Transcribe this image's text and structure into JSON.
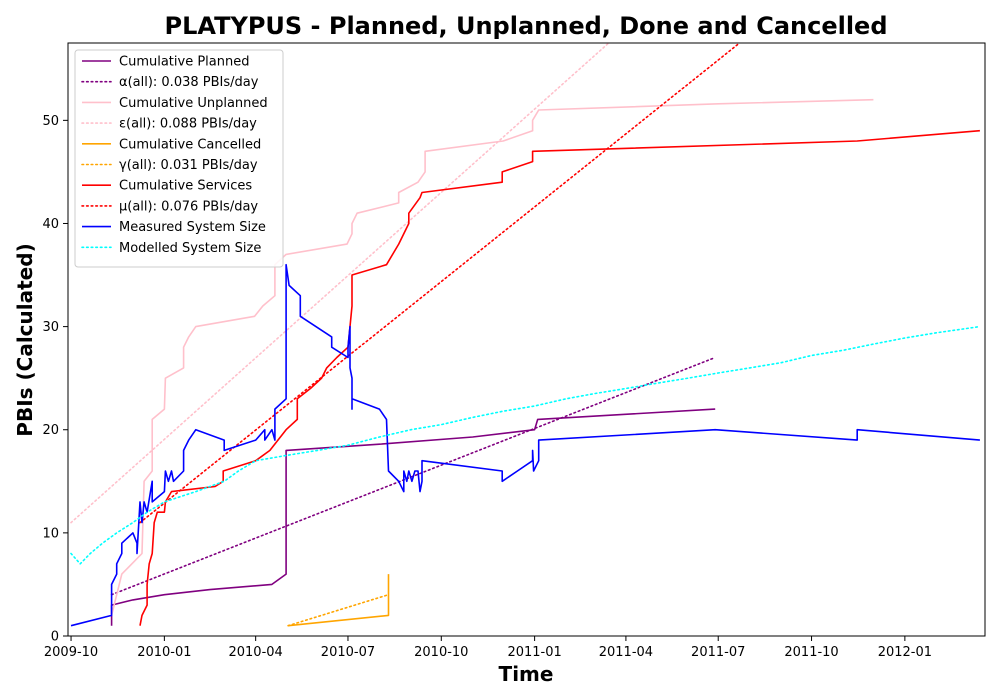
{
  "chart_data": {
    "type": "line",
    "title": "PLATYPUS - Planned, Unplanned, Done  and Cancelled",
    "xlabel": "Time",
    "ylabel": "PBIs (Calculated)",
    "xlim": [
      "2009-09-28",
      "2012-03-20"
    ],
    "ylim": [
      0,
      57.5
    ],
    "x_ticks": [
      "2009-10",
      "2010-01",
      "2010-04",
      "2010-07",
      "2010-10",
      "2011-01",
      "2011-04",
      "2011-07",
      "2011-10",
      "2012-01"
    ],
    "y_ticks": [
      0,
      10,
      20,
      30,
      40,
      50
    ],
    "grid": false,
    "legend_position": "top-left",
    "series": [
      {
        "name": "Cumulative Planned",
        "color": "#800080",
        "style": "solid",
        "points": [
          [
            "2009-11-10",
            1
          ],
          [
            "2009-11-10",
            3
          ],
          [
            "2009-12-01",
            3.5
          ],
          [
            "2010-01-01",
            4
          ],
          [
            "2010-02-15",
            4.5
          ],
          [
            "2010-04-17",
            5
          ],
          [
            "2010-05-01",
            6
          ],
          [
            "2010-05-01",
            18
          ],
          [
            "2010-08-01",
            18.6
          ],
          [
            "2010-11-01",
            19.3
          ],
          [
            "2011-01-01",
            20
          ],
          [
            "2011-01-04",
            21
          ],
          [
            "2011-06-28",
            22
          ]
        ]
      },
      {
        "name": "α(all): 0.038 PBIs/day",
        "color": "#800080",
        "style": "dotted",
        "points": [
          [
            "2009-11-10",
            4
          ],
          [
            "2011-06-28",
            27
          ]
        ]
      },
      {
        "name": "Cumulative Unplanned",
        "color": "#ffc0cb",
        "style": "solid",
        "points": [
          [
            "2009-11-10",
            2
          ],
          [
            "2009-11-15",
            4
          ],
          [
            "2009-11-20",
            6
          ],
          [
            "2009-12-10",
            8
          ],
          [
            "2009-12-12",
            15
          ],
          [
            "2009-12-20",
            16
          ],
          [
            "2009-12-20",
            21
          ],
          [
            "2010-01-01",
            22
          ],
          [
            "2010-01-02",
            25
          ],
          [
            "2010-01-20",
            26
          ],
          [
            "2010-01-20",
            28
          ],
          [
            "2010-01-25",
            29
          ],
          [
            "2010-02-01",
            30
          ],
          [
            "2010-03-31",
            31
          ],
          [
            "2010-04-08",
            32
          ],
          [
            "2010-04-20",
            33
          ],
          [
            "2010-04-20",
            36
          ],
          [
            "2010-05-01",
            37
          ],
          [
            "2010-06-30",
            38
          ],
          [
            "2010-07-05",
            39
          ],
          [
            "2010-07-05",
            40
          ],
          [
            "2010-07-10",
            41
          ],
          [
            "2010-08-20",
            42
          ],
          [
            "2010-08-20",
            43
          ],
          [
            "2010-09-08",
            44
          ],
          [
            "2010-09-15",
            45
          ],
          [
            "2010-09-15",
            47
          ],
          [
            "2010-12-01",
            48
          ],
          [
            "2010-12-30",
            49
          ],
          [
            "2010-12-30",
            50
          ],
          [
            "2011-01-05",
            51
          ],
          [
            "2011-07-01",
            51.6
          ],
          [
            "2011-12-01",
            52
          ]
        ]
      },
      {
        "name": "ε(all): 0.088 PBIs/day",
        "color": "#ffc0cb",
        "style": "dotted",
        "points": [
          [
            "2009-10-01",
            11
          ],
          [
            "2011-03-15",
            57.5
          ]
        ]
      },
      {
        "name": "Cumulative Cancelled",
        "color": "#ffa500",
        "style": "solid",
        "points": [
          [
            "2010-05-03",
            1
          ],
          [
            "2010-08-10",
            2
          ],
          [
            "2010-08-10",
            6
          ]
        ]
      },
      {
        "name": "γ(all): 0.031 PBIs/day",
        "color": "#ffa500",
        "style": "dotted",
        "points": [
          [
            "2010-05-03",
            1
          ],
          [
            "2010-08-10",
            4
          ]
        ]
      },
      {
        "name": "Cumulative Services",
        "color": "#ff0000",
        "style": "solid",
        "points": [
          [
            "2009-12-08",
            1
          ],
          [
            "2009-12-10",
            2
          ],
          [
            "2009-12-15",
            3
          ],
          [
            "2009-12-15",
            5
          ],
          [
            "2009-12-17",
            7
          ],
          [
            "2009-12-20",
            8
          ],
          [
            "2009-12-22",
            11
          ],
          [
            "2009-12-25",
            12
          ],
          [
            "2010-01-01",
            12
          ],
          [
            "2010-01-02",
            13
          ],
          [
            "2010-01-08",
            14
          ],
          [
            "2010-02-20",
            14.5
          ],
          [
            "2010-02-28",
            15
          ],
          [
            "2010-02-28",
            16
          ],
          [
            "2010-04-01",
            17
          ],
          [
            "2010-04-15",
            18
          ],
          [
            "2010-05-01",
            20
          ],
          [
            "2010-05-12",
            21
          ],
          [
            "2010-05-12",
            23
          ],
          [
            "2010-05-25",
            24
          ],
          [
            "2010-06-05",
            25
          ],
          [
            "2010-06-10",
            26
          ],
          [
            "2010-06-20",
            27
          ],
          [
            "2010-07-01",
            28
          ],
          [
            "2010-07-03",
            30
          ],
          [
            "2010-07-05",
            32
          ],
          [
            "2010-07-05",
            35
          ],
          [
            "2010-08-08",
            36
          ],
          [
            "2010-08-20",
            38
          ],
          [
            "2010-08-30",
            40
          ],
          [
            "2010-08-30",
            41
          ],
          [
            "2010-09-10",
            42.5
          ],
          [
            "2010-09-12",
            43
          ],
          [
            "2010-11-30",
            44
          ],
          [
            "2010-11-30",
            45
          ],
          [
            "2010-12-30",
            46
          ],
          [
            "2010-12-30",
            47
          ],
          [
            "2011-11-15",
            48
          ],
          [
            "2012-03-15",
            49
          ]
        ]
      },
      {
        "name": "μ(all): 0.076 PBIs/day",
        "color": "#ff0000",
        "style": "dotted",
        "points": [
          [
            "2009-12-08",
            11
          ],
          [
            "2011-07-22",
            57.5
          ]
        ]
      },
      {
        "name": "Measured System Size",
        "color": "#0000ff",
        "style": "solid",
        "points": [
          [
            "2009-10-01",
            1
          ],
          [
            "2009-11-10",
            2
          ],
          [
            "2009-11-10",
            5
          ],
          [
            "2009-11-15",
            6
          ],
          [
            "2009-11-15",
            7
          ],
          [
            "2009-11-20",
            8
          ],
          [
            "2009-11-20",
            9
          ],
          [
            "2009-12-01",
            10
          ],
          [
            "2009-12-05",
            9
          ],
          [
            "2009-12-05",
            8
          ],
          [
            "2009-12-08",
            13
          ],
          [
            "2009-12-10",
            11
          ],
          [
            "2009-12-12",
            13
          ],
          [
            "2009-12-15",
            12
          ],
          [
            "2009-12-20",
            15
          ],
          [
            "2009-12-20",
            13
          ],
          [
            "2010-01-01",
            14
          ],
          [
            "2010-01-02",
            16
          ],
          [
            "2010-01-05",
            15
          ],
          [
            "2010-01-08",
            16
          ],
          [
            "2010-01-10",
            15
          ],
          [
            "2010-01-20",
            16
          ],
          [
            "2010-01-20",
            18
          ],
          [
            "2010-01-25",
            19
          ],
          [
            "2010-02-01",
            20
          ],
          [
            "2010-03-01",
            19
          ],
          [
            "2010-03-01",
            18
          ],
          [
            "2010-04-01",
            19
          ],
          [
            "2010-04-10",
            20
          ],
          [
            "2010-04-10",
            19
          ],
          [
            "2010-04-17",
            20
          ],
          [
            "2010-04-20",
            19
          ],
          [
            "2010-04-20",
            22
          ],
          [
            "2010-05-01",
            23
          ],
          [
            "2010-05-01",
            36
          ],
          [
            "2010-05-04",
            34
          ],
          [
            "2010-05-15",
            33
          ],
          [
            "2010-05-15",
            31
          ],
          [
            "2010-06-15",
            29
          ],
          [
            "2010-06-15",
            28
          ],
          [
            "2010-07-01",
            27
          ],
          [
            "2010-07-01",
            28
          ],
          [
            "2010-07-03",
            30
          ],
          [
            "2010-07-03",
            26
          ],
          [
            "2010-07-05",
            25
          ],
          [
            "2010-07-05",
            22
          ],
          [
            "2010-07-05",
            23
          ],
          [
            "2010-08-01",
            22
          ],
          [
            "2010-08-08",
            21
          ],
          [
            "2010-08-10",
            16
          ],
          [
            "2010-08-20",
            15
          ],
          [
            "2010-08-25",
            14
          ],
          [
            "2010-08-25",
            16
          ],
          [
            "2010-08-28",
            15
          ],
          [
            "2010-08-30",
            16
          ],
          [
            "2010-09-02",
            15
          ],
          [
            "2010-09-05",
            16
          ],
          [
            "2010-09-08",
            16
          ],
          [
            "2010-09-10",
            14
          ],
          [
            "2010-09-12",
            15
          ],
          [
            "2010-09-12",
            17
          ],
          [
            "2010-11-30",
            16
          ],
          [
            "2010-11-30",
            15
          ],
          [
            "2010-12-15",
            16
          ],
          [
            "2010-12-30",
            17
          ],
          [
            "2010-12-30",
            18
          ],
          [
            "2010-12-31",
            16
          ],
          [
            "2011-01-05",
            17
          ],
          [
            "2011-01-05",
            19
          ],
          [
            "2011-06-28",
            20
          ],
          [
            "2011-11-15",
            19
          ],
          [
            "2011-11-15",
            20
          ],
          [
            "2012-03-15",
            19
          ]
        ]
      },
      {
        "name": "Modelled System Size",
        "color": "#00ffff",
        "style": "dotted",
        "points": [
          [
            "2009-10-01",
            8
          ],
          [
            "2009-10-10",
            7
          ],
          [
            "2009-10-20",
            8
          ],
          [
            "2009-11-01",
            9
          ],
          [
            "2009-11-15",
            10
          ],
          [
            "2009-12-01",
            11
          ],
          [
            "2009-12-15",
            12
          ],
          [
            "2010-01-01",
            13
          ],
          [
            "2010-02-01",
            14
          ],
          [
            "2010-03-01",
            15
          ],
          [
            "2010-03-15",
            16
          ],
          [
            "2010-04-01",
            17
          ],
          [
            "2010-05-01",
            17.5
          ],
          [
            "2010-06-01",
            18
          ],
          [
            "2010-07-01",
            18.5
          ],
          [
            "2010-08-01",
            19.3
          ],
          [
            "2010-09-01",
            20
          ],
          [
            "2010-10-01",
            20.5
          ],
          [
            "2010-11-01",
            21.2
          ],
          [
            "2010-12-01",
            21.8
          ],
          [
            "2011-01-01",
            22.3
          ],
          [
            "2011-02-01",
            23
          ],
          [
            "2011-03-01",
            23.5
          ],
          [
            "2011-04-01",
            24
          ],
          [
            "2011-05-01",
            24.5
          ],
          [
            "2011-06-01",
            25
          ],
          [
            "2011-07-01",
            25.5
          ],
          [
            "2011-08-01",
            26
          ],
          [
            "2011-09-01",
            26.5
          ],
          [
            "2011-10-01",
            27.2
          ],
          [
            "2011-11-01",
            27.7
          ],
          [
            "2011-12-01",
            28.3
          ],
          [
            "2012-01-01",
            28.9
          ],
          [
            "2012-02-01",
            29.4
          ],
          [
            "2012-03-15",
            30
          ]
        ]
      }
    ]
  }
}
